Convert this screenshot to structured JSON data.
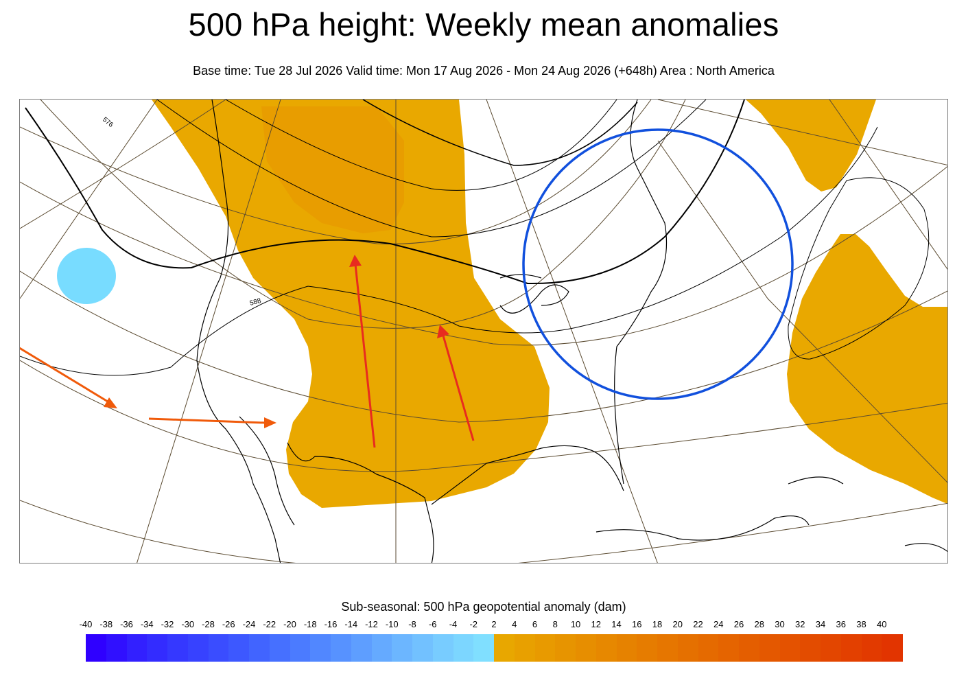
{
  "header": {
    "title": "500 hPa height: Weekly mean anomalies",
    "subtitle": "Base time: Tue 28 Jul 2026 Valid time: Mon 17 Aug 2026 - Mon 24 Aug 2026 (+648h) Area : North America"
  },
  "map": {
    "contour_labels": [
      "576",
      "588"
    ],
    "anomaly_colors": {
      "positive": "#e9a800",
      "positive_strong": "#e79b00",
      "negative": "#78dcff"
    },
    "annotation_colors": {
      "circle": "#1150dd",
      "red_arrow": "#e82b1f",
      "orange_arrow": "#f05a0a"
    },
    "lines": {
      "contour": "#000000",
      "graticule": "#5a4a30",
      "coast": "#000000"
    }
  },
  "legend": {
    "title": "Sub-seasonal: 500 hPa geopotential anomaly (dam)",
    "ticks": [
      "-40",
      "-38",
      "-36",
      "-34",
      "-32",
      "-30",
      "-28",
      "-26",
      "-24",
      "-22",
      "-20",
      "-18",
      "-16",
      "-14",
      "-12",
      "-10",
      "-8",
      "-6",
      "-4",
      "-2",
      "2",
      "4",
      "6",
      "8",
      "10",
      "12",
      "14",
      "16",
      "18",
      "20",
      "22",
      "24",
      "26",
      "28",
      "30",
      "32",
      "34",
      "36",
      "38",
      "40"
    ],
    "negative_colors": [
      "#2f00ff",
      "#3010ff",
      "#3220ff",
      "#332cff",
      "#3538ff",
      "#3742ff",
      "#3a4dff",
      "#3d58ff",
      "#4164ff",
      "#4670ff",
      "#4b7bff",
      "#5187ff",
      "#5792ff",
      "#5e9eff",
      "#65aaff",
      "#6cb6ff",
      "#72c1ff",
      "#78ccff",
      "#7cd6ff",
      "#80dfff"
    ],
    "positive_colors": [
      "#e8a700",
      "#e8a000",
      "#e89a00",
      "#e79400",
      "#e78e00",
      "#e78800",
      "#e68200",
      "#e67c00",
      "#e67600",
      "#e57000",
      "#e56a00",
      "#e56400",
      "#e45e00",
      "#e45800",
      "#e45200",
      "#e34c00",
      "#e34600",
      "#e34000",
      "#e23a00",
      "#e23400"
    ]
  }
}
